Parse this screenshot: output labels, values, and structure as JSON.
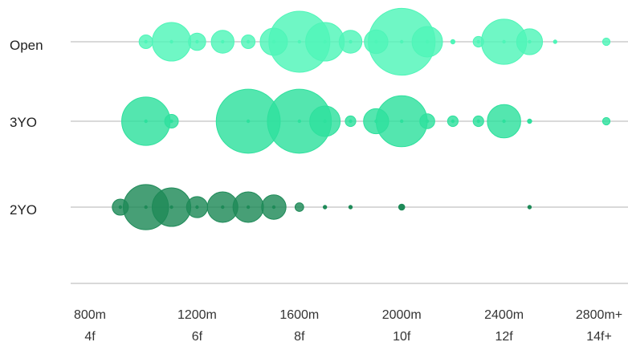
{
  "chart_data": {
    "type": "scatter",
    "x_ticks": [
      {
        "value": 800,
        "line1": "800m",
        "line2": "4f"
      },
      {
        "value": 1200,
        "line1": "1200m",
        "line2": "6f"
      },
      {
        "value": 1600,
        "line1": "1600m",
        "line2": "8f"
      },
      {
        "value": 2000,
        "line1": "2000m",
        "line2": "10f"
      },
      {
        "value": 2400,
        "line1": "2400m",
        "line2": "12f"
      },
      {
        "value": 2800,
        "line1": "2800m+",
        "line2": "14f+"
      }
    ],
    "xlim": [
      800,
      2800
    ],
    "rows": [
      "Open",
      "3YO",
      "2YO"
    ],
    "size_scale_max": 100,
    "colors": {
      "Open": "#4ff5b8",
      "3YO": "#2ee09d",
      "2YO": "#1e8a58",
      "axis": "#b3b3b3"
    },
    "series": [
      {
        "name": "Open",
        "points": [
          {
            "x": 1000,
            "size": 5
          },
          {
            "x": 1100,
            "size": 40
          },
          {
            "x": 1200,
            "size": 8
          },
          {
            "x": 1300,
            "size": 14
          },
          {
            "x": 1400,
            "size": 5
          },
          {
            "x": 1500,
            "size": 20
          },
          {
            "x": 1600,
            "size": 100
          },
          {
            "x": 1700,
            "size": 40
          },
          {
            "x": 1800,
            "size": 14
          },
          {
            "x": 1900,
            "size": 15
          },
          {
            "x": 2000,
            "size": 120
          },
          {
            "x": 2100,
            "size": 25
          },
          {
            "x": 2200,
            "size": 0.5
          },
          {
            "x": 2300,
            "size": 3
          },
          {
            "x": 2400,
            "size": 55
          },
          {
            "x": 2500,
            "size": 18
          },
          {
            "x": 2600,
            "size": 0.3
          },
          {
            "x": 2800,
            "size": 1.5
          }
        ]
      },
      {
        "name": "3YO",
        "points": [
          {
            "x": 1000,
            "size": 63
          },
          {
            "x": 1100,
            "size": 5
          },
          {
            "x": 1400,
            "size": 110
          },
          {
            "x": 1600,
            "size": 110
          },
          {
            "x": 1700,
            "size": 25
          },
          {
            "x": 1800,
            "size": 3
          },
          {
            "x": 1900,
            "size": 17
          },
          {
            "x": 2000,
            "size": 70
          },
          {
            "x": 2100,
            "size": 6
          },
          {
            "x": 2200,
            "size": 3
          },
          {
            "x": 2300,
            "size": 3
          },
          {
            "x": 2400,
            "size": 30
          },
          {
            "x": 2500,
            "size": 0.5
          },
          {
            "x": 2800,
            "size": 1.5
          }
        ]
      },
      {
        "name": "2YO",
        "points": [
          {
            "x": 900,
            "size": 7
          },
          {
            "x": 1000,
            "size": 55
          },
          {
            "x": 1100,
            "size": 40
          },
          {
            "x": 1200,
            "size": 12
          },
          {
            "x": 1300,
            "size": 25
          },
          {
            "x": 1400,
            "size": 25
          },
          {
            "x": 1500,
            "size": 16
          },
          {
            "x": 1600,
            "size": 2
          },
          {
            "x": 1700,
            "size": 0.3
          },
          {
            "x": 1800,
            "size": 0.3
          },
          {
            "x": 2000,
            "size": 1
          },
          {
            "x": 2500,
            "size": 0.3
          }
        ]
      }
    ]
  }
}
